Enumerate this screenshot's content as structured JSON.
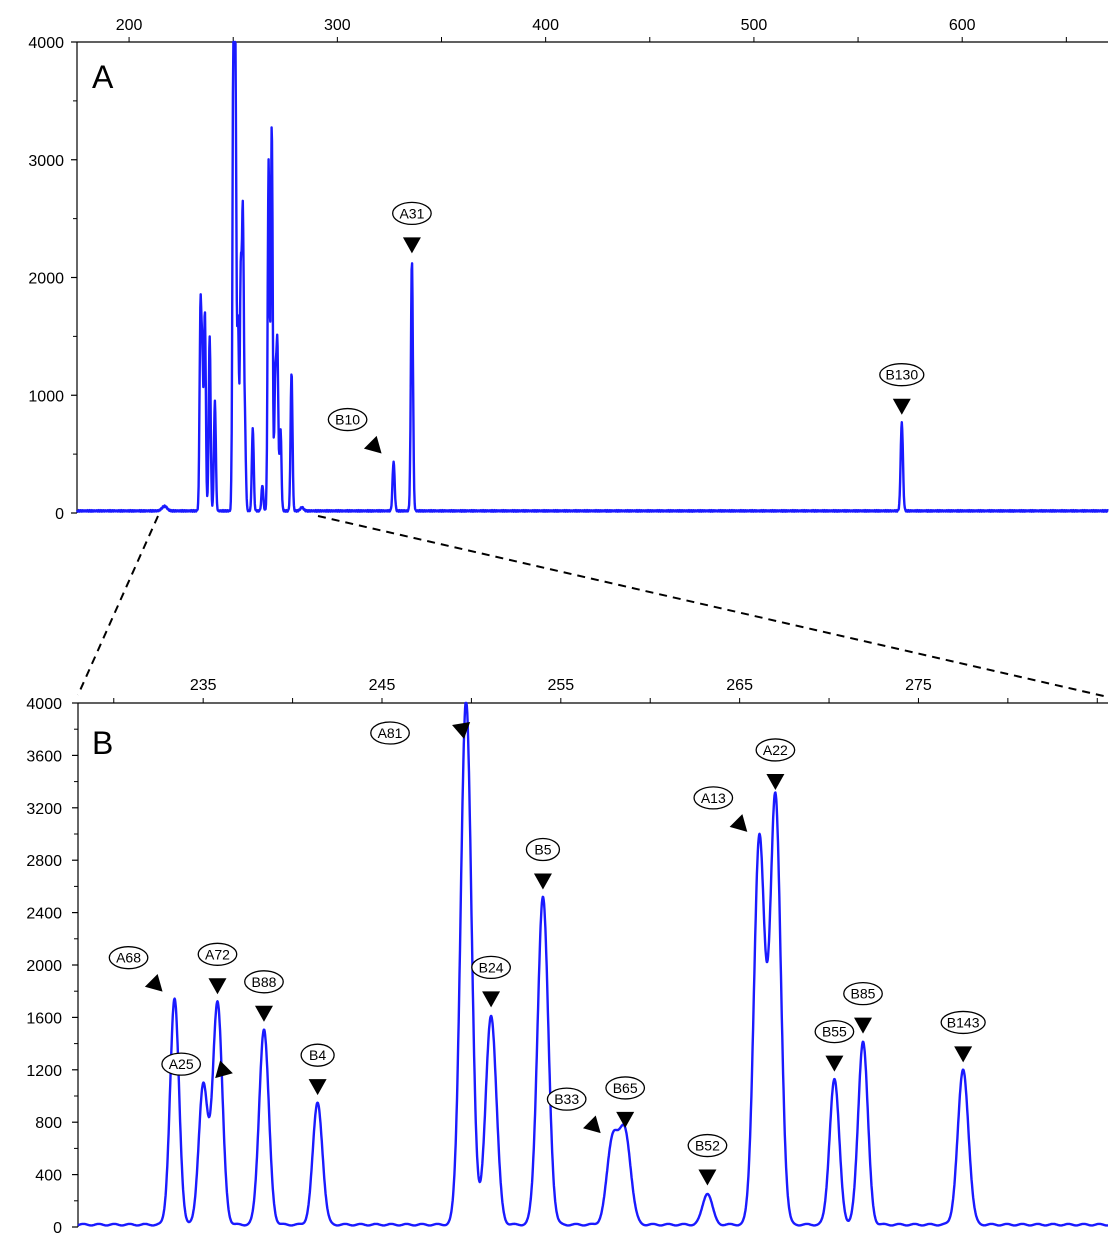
{
  "chart_data": [
    {
      "type": "line",
      "panel_label": "A",
      "x_ticks": [
        200,
        300,
        400,
        500,
        600
      ],
      "y_ticks": [
        0,
        1000,
        2000,
        3000,
        4000
      ],
      "xlim": [
        175,
        670
      ],
      "ylim": [
        0,
        4000
      ],
      "grid": false,
      "color": "#1a1aff",
      "peaks": [
        {
          "x": 217,
          "y": 40,
          "w": 1.2
        },
        {
          "x": 234.3,
          "y": 1720,
          "w": 0.45
        },
        {
          "x": 235.2,
          "y": 1150,
          "w": 0.4
        },
        {
          "x": 236.4,
          "y": 1700,
          "w": 0.45
        },
        {
          "x": 238.7,
          "y": 1480,
          "w": 0.45
        },
        {
          "x": 241.2,
          "y": 930,
          "w": 0.45
        },
        {
          "x": 250.1,
          "y": 4000,
          "w": 0.45
        },
        {
          "x": 251.1,
          "y": 3600,
          "w": 0.4
        },
        {
          "x": 252.3,
          "y": 1620,
          "w": 0.45
        },
        {
          "x": 253.6,
          "y": 1900,
          "w": 0.4
        },
        {
          "x": 254.6,
          "y": 2500,
          "w": 0.45
        },
        {
          "x": 255.6,
          "y": 700,
          "w": 0.45
        },
        {
          "x": 259.4,
          "y": 700,
          "w": 0.45
        },
        {
          "x": 264.0,
          "y": 220,
          "w": 0.45
        },
        {
          "x": 267.0,
          "y": 2970,
          "w": 0.45
        },
        {
          "x": 268.5,
          "y": 3280,
          "w": 0.45
        },
        {
          "x": 270.2,
          "y": 1100,
          "w": 0.45
        },
        {
          "x": 271.2,
          "y": 1380,
          "w": 0.45
        },
        {
          "x": 272.7,
          "y": 700,
          "w": 0.45
        },
        {
          "x": 278.0,
          "y": 1180,
          "w": 0.45
        },
        {
          "x": 283.0,
          "y": 30,
          "w": 0.8
        },
        {
          "x": 327.0,
          "y": 420,
          "w": 0.5
        },
        {
          "x": 335.8,
          "y": 2120,
          "w": 0.5
        },
        {
          "x": 571.0,
          "y": 750,
          "w": 0.55
        }
      ],
      "annotations": [
        {
          "label": "A31",
          "x": 335.8,
          "y": 2120,
          "dir": "down"
        },
        {
          "label": "B10",
          "x": 327.0,
          "y": 420,
          "dir": "down-right"
        },
        {
          "label": "B130",
          "x": 571.0,
          "y": 750,
          "dir": "down"
        }
      ]
    },
    {
      "type": "line",
      "panel_label": "B",
      "x_ticks": [
        235,
        245,
        255,
        265,
        275
      ],
      "y_ticks": [
        0,
        400,
        800,
        1200,
        1600,
        2000,
        2400,
        2800,
        3200,
        3600,
        4000
      ],
      "xlim": [
        228.0,
        285.6
      ],
      "ylim": [
        0,
        4000
      ],
      "grid": false,
      "color": "#1a1aff",
      "peaks": [
        {
          "x": 233.4,
          "y": 1720,
          "w": 0.25
        },
        {
          "x": 235.0,
          "y": 1060,
          "w": 0.25
        },
        {
          "x": 235.8,
          "y": 1700,
          "w": 0.27
        },
        {
          "x": 238.4,
          "y": 1490,
          "w": 0.27
        },
        {
          "x": 241.4,
          "y": 930,
          "w": 0.27
        },
        {
          "x": 249.7,
          "y": 4000,
          "w": 0.3
        },
        {
          "x": 251.1,
          "y": 1600,
          "w": 0.3
        },
        {
          "x": 254.0,
          "y": 2500,
          "w": 0.3
        },
        {
          "x": 257.9,
          "y": 640,
          "w": 0.32
        },
        {
          "x": 258.6,
          "y": 680,
          "w": 0.32
        },
        {
          "x": 263.2,
          "y": 240,
          "w": 0.27
        },
        {
          "x": 266.1,
          "y": 2940,
          "w": 0.3
        },
        {
          "x": 267.0,
          "y": 3260,
          "w": 0.3
        },
        {
          "x": 270.3,
          "y": 1110,
          "w": 0.27
        },
        {
          "x": 271.9,
          "y": 1400,
          "w": 0.27
        },
        {
          "x": 277.5,
          "y": 1180,
          "w": 0.3
        }
      ],
      "annotations": [
        {
          "label": "A68",
          "x": 233.4,
          "y": 1720,
          "dir": "down-right"
        },
        {
          "label": "A25",
          "x": 235.0,
          "y": 1060,
          "dir": "down-left"
        },
        {
          "label": "A72",
          "x": 235.8,
          "y": 1700,
          "dir": "down"
        },
        {
          "label": "B88",
          "x": 238.4,
          "y": 1490,
          "dir": "down"
        },
        {
          "label": "B4",
          "x": 241.4,
          "y": 930,
          "dir": "down"
        },
        {
          "label": "A81",
          "x": 249.7,
          "y": 4000,
          "dir": "left"
        },
        {
          "label": "B24",
          "x": 251.1,
          "y": 1600,
          "dir": "down"
        },
        {
          "label": "B5",
          "x": 254.0,
          "y": 2500,
          "dir": "down"
        },
        {
          "label": "B33",
          "x": 257.9,
          "y": 640,
          "dir": "down-right"
        },
        {
          "label": "B65",
          "x": 258.6,
          "y": 680,
          "dir": "down"
        },
        {
          "label": "B52",
          "x": 263.2,
          "y": 240,
          "dir": "down"
        },
        {
          "label": "A13",
          "x": 266.1,
          "y": 2940,
          "dir": "down-right"
        },
        {
          "label": "A22",
          "x": 267.0,
          "y": 3260,
          "dir": "down"
        },
        {
          "label": "B55",
          "x": 270.3,
          "y": 1110,
          "dir": "down"
        },
        {
          "label": "B85",
          "x": 271.9,
          "y": 1400,
          "dir": "down"
        },
        {
          "label": "B143",
          "x": 277.5,
          "y": 1180,
          "dir": "down"
        }
      ]
    }
  ]
}
